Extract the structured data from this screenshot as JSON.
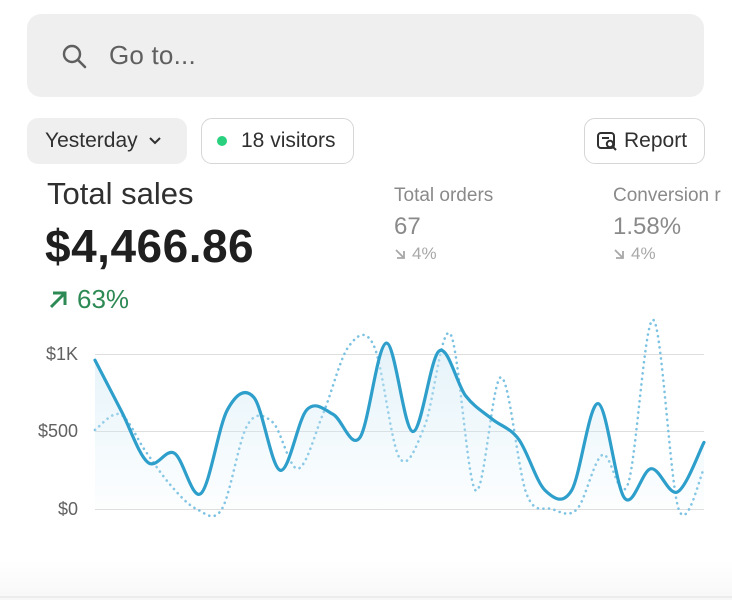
{
  "search": {
    "placeholder": "Go to...",
    "icon": "search-icon"
  },
  "filters": {
    "date_range": "Yesterday",
    "visitors": "18 visitors",
    "visitors_dot_color": "#29d17e",
    "report": "Report"
  },
  "metric": {
    "title": "Total sales",
    "value": "$4,466.86",
    "change": "63%",
    "change_color": "#2d8a55"
  },
  "secondary": [
    {
      "title": "Total orders",
      "value": "67",
      "change": "4%"
    },
    {
      "title": "Conversion r",
      "value": "1.58%",
      "change": "4%"
    }
  ],
  "chart_data": {
    "type": "line",
    "y_ticks": [
      "$1K",
      "$500",
      "$0"
    ],
    "ylim": [
      0,
      1000
    ],
    "grid": true,
    "series": [
      {
        "style": "solid",
        "color": "#2e9fcb",
        "values": [
          960,
          630,
          300,
          360,
          100,
          640,
          720,
          250,
          640,
          610,
          460,
          1070,
          500,
          1020,
          730,
          580,
          450,
          120,
          120,
          680,
          70,
          260,
          110,
          430
        ]
      },
      {
        "style": "dotted",
        "color": "#7cc2e2",
        "values": [
          510,
          610,
          370,
          150,
          0,
          0,
          540,
          560,
          260,
          620,
          1050,
          1050,
          330,
          540,
          1130,
          120,
          850,
          100,
          0,
          0,
          350,
          160,
          1220,
          0,
          260
        ]
      }
    ]
  }
}
